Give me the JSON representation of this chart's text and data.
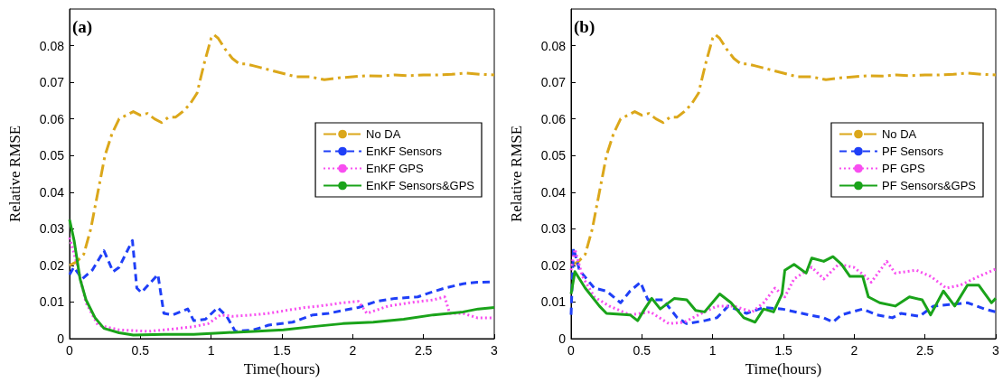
{
  "chart_data": [
    {
      "type": "line",
      "xlabel": "Time(hours)",
      "ylabel": "Relative RMSE",
      "annotations": [
        "(a)"
      ],
      "xlim": [
        0,
        3
      ],
      "xticks": [
        0,
        0.5,
        1,
        1.5,
        2,
        2.5,
        3
      ],
      "ylim": [
        0,
        0.09
      ],
      "yticks": [
        0,
        0.01,
        0.02,
        0.03,
        0.04,
        0.05,
        0.06,
        0.07,
        0.08
      ],
      "grid": false,
      "legend": "right",
      "marker": "none",
      "series": [
        {
          "name": "No DA",
          "color": "#dba71a",
          "line_style": "dashdot",
          "x": [
            0,
            0.05,
            0.1,
            0.15,
            0.2,
            0.25,
            0.3,
            0.35,
            0.4,
            0.45,
            0.5,
            0.55,
            0.6,
            0.65,
            0.7,
            0.75,
            0.8,
            0.85,
            0.9,
            0.95,
            1.0,
            1.02,
            1.05,
            1.1,
            1.15,
            1.2,
            1.25,
            1.3,
            1.35,
            1.4,
            1.5,
            1.6,
            1.7,
            1.8,
            1.9,
            2.0,
            2.1,
            2.2,
            2.3,
            2.4,
            2.5,
            2.6,
            2.7,
            2.8,
            2.9,
            3.0
          ],
          "values": [
            0.02,
            0.021,
            0.023,
            0.03,
            0.04,
            0.05,
            0.056,
            0.06,
            0.061,
            0.062,
            0.061,
            0.0615,
            0.06,
            0.059,
            0.0605,
            0.0605,
            0.062,
            0.064,
            0.067,
            0.075,
            0.082,
            0.083,
            0.082,
            0.079,
            0.0765,
            0.075,
            0.075,
            0.0745,
            0.074,
            0.0735,
            0.0725,
            0.0715,
            0.0715,
            0.0707,
            0.0712,
            0.0715,
            0.0718,
            0.0717,
            0.072,
            0.0718,
            0.072,
            0.072,
            0.0722,
            0.0725,
            0.0722,
            0.072
          ]
        },
        {
          "name": "EnKF Sensors",
          "color": "#1f3ff7",
          "line_style": "dashed",
          "x": [
            0,
            0.03,
            0.09,
            0.16,
            0.243,
            0.307,
            0.35,
            0.444,
            0.475,
            0.507,
            0.624,
            0.666,
            0.73,
            0.835,
            0.877,
            0.96,
            1.047,
            1.11,
            1.17,
            1.3,
            1.406,
            1.575,
            1.72,
            1.83,
            1.93,
            2.04,
            2.17,
            2.3,
            2.46,
            2.55,
            2.65,
            2.78,
            2.88,
            3.0
          ],
          "values": [
            0.0175,
            0.0195,
            0.0163,
            0.0187,
            0.024,
            0.0183,
            0.0195,
            0.0268,
            0.0138,
            0.0126,
            0.0175,
            0.0069,
            0.0065,
            0.0081,
            0.0049,
            0.0053,
            0.0085,
            0.0061,
            0.002,
            0.0024,
            0.0037,
            0.0045,
            0.0065,
            0.0069,
            0.0077,
            0.0085,
            0.0102,
            0.011,
            0.0114,
            0.0126,
            0.0138,
            0.015,
            0.0154,
            0.0155
          ]
        },
        {
          "name": "EnKF GPS",
          "color": "#f84ef0",
          "line_style": "dotted",
          "x": [
            0,
            0.053,
            0.116,
            0.2,
            0.35,
            0.56,
            0.666,
            0.77,
            0.877,
            0.98,
            1.068,
            1.15,
            1.3,
            1.406,
            1.53,
            1.66,
            1.765,
            1.93,
            2.04,
            2.1,
            2.25,
            2.4,
            2.57,
            2.65,
            2.685,
            2.78,
            2.88,
            3.0
          ],
          "values": [
            0.0276,
            0.0203,
            0.0098,
            0.0037,
            0.0024,
            0.002,
            0.0024,
            0.0028,
            0.0033,
            0.0041,
            0.0065,
            0.0061,
            0.0065,
            0.0069,
            0.0077,
            0.0085,
            0.0089,
            0.0098,
            0.0102,
            0.0069,
            0.0089,
            0.0098,
            0.0106,
            0.0114,
            0.0069,
            0.0069,
            0.0057,
            0.0057
          ]
        },
        {
          "name": "EnKF Sensors&GPS",
          "color": "#1aa31a",
          "line_style": "solid",
          "x": [
            0,
            0.032,
            0.074,
            0.116,
            0.18,
            0.243,
            0.35,
            0.45,
            0.666,
            0.877,
            1.09,
            1.3,
            1.51,
            1.72,
            1.93,
            2.145,
            2.36,
            2.57,
            2.78,
            2.886,
            3.0
          ],
          "values": [
            0.0325,
            0.0268,
            0.0163,
            0.0106,
            0.0057,
            0.0028,
            0.0016,
            0.001,
            0.0012,
            0.0012,
            0.0016,
            0.002,
            0.0024,
            0.0033,
            0.0041,
            0.0045,
            0.0053,
            0.0065,
            0.0073,
            0.0081,
            0.0085
          ]
        }
      ]
    },
    {
      "type": "line",
      "xlabel": "Time(hours)",
      "ylabel": "Relative RMSE",
      "annotations": [
        "(b)"
      ],
      "xlim": [
        0,
        3
      ],
      "xticks": [
        0,
        0.5,
        1,
        1.5,
        2,
        2.5,
        3
      ],
      "ylim": [
        0,
        0.09
      ],
      "yticks": [
        0,
        0.01,
        0.02,
        0.03,
        0.04,
        0.05,
        0.06,
        0.07,
        0.08
      ],
      "grid": false,
      "legend": "right",
      "marker": "none",
      "series": [
        {
          "name": "No DA",
          "color": "#dba71a",
          "line_style": "dashdot",
          "x": [
            0,
            0.05,
            0.1,
            0.15,
            0.2,
            0.25,
            0.3,
            0.35,
            0.4,
            0.45,
            0.5,
            0.55,
            0.6,
            0.65,
            0.7,
            0.75,
            0.8,
            0.85,
            0.9,
            0.95,
            1.0,
            1.02,
            1.05,
            1.1,
            1.15,
            1.2,
            1.25,
            1.3,
            1.35,
            1.4,
            1.5,
            1.6,
            1.7,
            1.8,
            1.9,
            2.0,
            2.1,
            2.2,
            2.3,
            2.4,
            2.5,
            2.6,
            2.7,
            2.8,
            2.9,
            3.0
          ],
          "values": [
            0.02,
            0.021,
            0.023,
            0.03,
            0.04,
            0.05,
            0.056,
            0.06,
            0.061,
            0.062,
            0.061,
            0.0615,
            0.06,
            0.059,
            0.0605,
            0.0605,
            0.062,
            0.064,
            0.067,
            0.075,
            0.082,
            0.083,
            0.082,
            0.079,
            0.0765,
            0.075,
            0.075,
            0.0745,
            0.074,
            0.0735,
            0.0725,
            0.0715,
            0.0715,
            0.0707,
            0.0712,
            0.0715,
            0.0718,
            0.0717,
            0.072,
            0.0718,
            0.072,
            0.072,
            0.0722,
            0.0725,
            0.0722,
            0.072
          ]
        },
        {
          "name": "PF Sensors",
          "color": "#1f3ff7",
          "line_style": "dashed",
          "x": [
            0,
            0.017,
            0.059,
            0.164,
            0.25,
            0.35,
            0.417,
            0.49,
            0.543,
            0.65,
            0.75,
            0.817,
            0.943,
            1.03,
            1.11,
            1.24,
            1.36,
            1.49,
            1.68,
            1.785,
            1.85,
            1.91,
            2.06,
            2.16,
            2.27,
            2.33,
            2.46,
            2.56,
            2.67,
            2.8,
            2.92,
            3.0
          ],
          "values": [
            0.0065,
            0.0248,
            0.0187,
            0.0138,
            0.013,
            0.0098,
            0.013,
            0.0154,
            0.0106,
            0.0106,
            0.0057,
            0.0041,
            0.0049,
            0.0057,
            0.0089,
            0.0069,
            0.0085,
            0.0081,
            0.0065,
            0.0057,
            0.0045,
            0.0065,
            0.0081,
            0.0065,
            0.0057,
            0.0069,
            0.0061,
            0.0089,
            0.0093,
            0.0098,
            0.0081,
            0.0073
          ]
        },
        {
          "name": "PF GPS",
          "color": "#f84ef0",
          "line_style": "dotted",
          "x": [
            0,
            0.027,
            0.08,
            0.164,
            0.27,
            0.417,
            0.56,
            0.69,
            0.8,
            0.9,
            1.03,
            1.15,
            1.28,
            1.36,
            1.44,
            1.51,
            1.575,
            1.7,
            1.785,
            1.89,
            1.996,
            2.08,
            2.12,
            2.23,
            2.29,
            2.44,
            2.54,
            2.65,
            2.75,
            2.88,
            3.0
          ],
          "values": [
            0.0187,
            0.0244,
            0.017,
            0.0114,
            0.0089,
            0.0065,
            0.0073,
            0.0041,
            0.0045,
            0.0065,
            0.0089,
            0.0089,
            0.0073,
            0.0098,
            0.0138,
            0.0114,
            0.0163,
            0.0195,
            0.0163,
            0.0203,
            0.0195,
            0.017,
            0.0154,
            0.0211,
            0.0179,
            0.0187,
            0.017,
            0.0138,
            0.0146,
            0.017,
            0.019
          ]
        },
        {
          "name": "PF Sensors&GPS",
          "color": "#1aa31a",
          "line_style": "solid",
          "x": [
            0,
            0.027,
            0.1,
            0.2,
            0.25,
            0.417,
            0.47,
            0.52,
            0.57,
            0.63,
            0.73,
            0.817,
            0.88,
            0.943,
            1.05,
            1.13,
            1.22,
            1.3,
            1.36,
            1.43,
            1.49,
            1.51,
            1.575,
            1.66,
            1.7,
            1.785,
            1.85,
            1.91,
            1.97,
            2.06,
            2.1,
            2.18,
            2.29,
            2.39,
            2.48,
            2.54,
            2.63,
            2.71,
            2.8,
            2.88,
            2.97,
            3.0
          ],
          "values": [
            0.0122,
            0.0183,
            0.0138,
            0.0089,
            0.0069,
            0.0065,
            0.0049,
            0.0081,
            0.011,
            0.0081,
            0.011,
            0.0106,
            0.0077,
            0.0073,
            0.0122,
            0.0098,
            0.0057,
            0.0045,
            0.0081,
            0.0073,
            0.0122,
            0.0187,
            0.0203,
            0.0179,
            0.022,
            0.0211,
            0.0224,
            0.0203,
            0.017,
            0.017,
            0.0114,
            0.0098,
            0.0089,
            0.0114,
            0.0106,
            0.0065,
            0.013,
            0.0089,
            0.0146,
            0.0146,
            0.0098,
            0.011
          ]
        }
      ]
    }
  ]
}
